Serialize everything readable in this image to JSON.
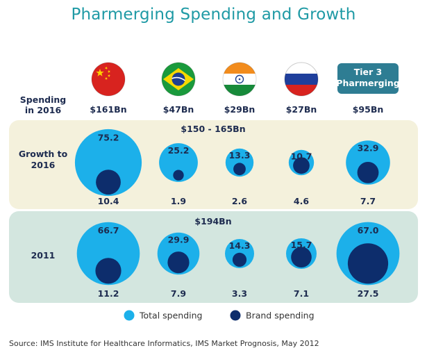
{
  "title": "Pharmerging Spending and Growth",
  "source": "Source: IMS Institute for Healthcare Informatics, IMS Market Prognosis, May 2012",
  "chart_data": {
    "type": "bubble",
    "title": "Pharmerging Spending and Growth",
    "row_header": {
      "line1": "Spending",
      "line2": "in 2016"
    },
    "categories": [
      {
        "id": "china",
        "icon": "china-flag-icon",
        "spending_2016": "$161Bn"
      },
      {
        "id": "brazil",
        "icon": "brazil-flag-icon",
        "spending_2016": "$47Bn"
      },
      {
        "id": "india",
        "icon": "india-flag-icon",
        "spending_2016": "$29Bn"
      },
      {
        "id": "russia",
        "icon": "russia-flag-icon",
        "spending_2016": "$27Bn"
      },
      {
        "id": "tier3",
        "badge": {
          "line1": "Tier 3",
          "line2": "Pharmerging"
        },
        "spending_2016": "$95Bn"
      }
    ],
    "panels": [
      {
        "id": "growth",
        "label": {
          "line1": "Growth to",
          "line2": "2016"
        },
        "total_label": "$150 - 165Bn",
        "total_spending": [
          75.2,
          25.2,
          13.3,
          10.7,
          32.9
        ],
        "brand_spending": [
          10.4,
          1.9,
          2.6,
          4.6,
          7.7
        ]
      },
      {
        "id": "y2011",
        "label": {
          "line1": "2011",
          "line2": ""
        },
        "total_label": "$194Bn",
        "total_spending": [
          66.7,
          29.9,
          14.3,
          15.7,
          67.0
        ],
        "brand_spending": [
          11.2,
          7.9,
          3.3,
          7.1,
          27.5
        ]
      }
    ],
    "legend": [
      {
        "name": "Total spending",
        "color": "#1cb0ea"
      },
      {
        "name": "Brand spending",
        "color": "#0d2d6c"
      }
    ],
    "value_unit": "$Bn",
    "colors": {
      "growth_panel": "#f4f1dc",
      "panel_2011": "#d3e6df",
      "badge": "#2e7d93",
      "title": "#1f9aa5"
    }
  }
}
